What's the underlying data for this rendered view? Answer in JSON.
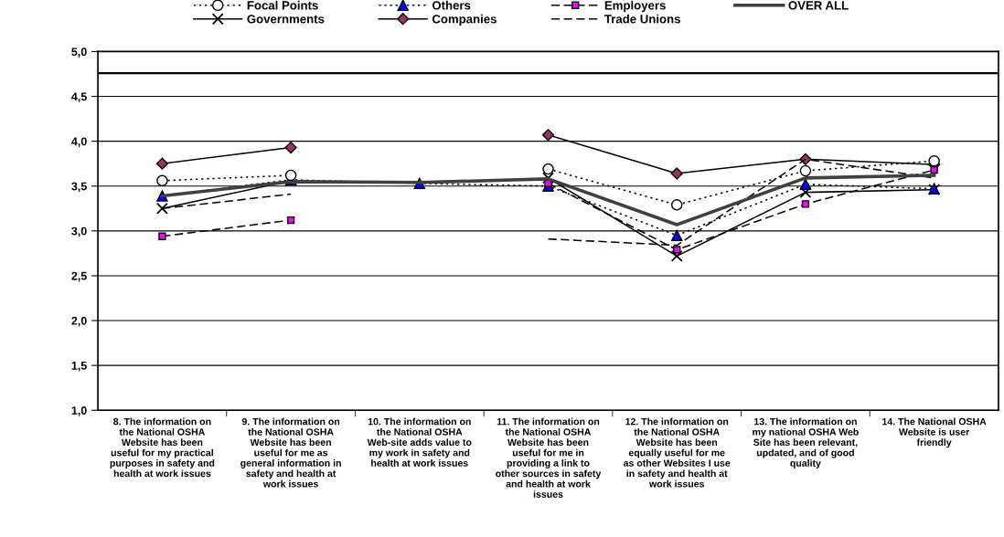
{
  "chart_data": {
    "type": "line",
    "categories": [
      "8. The information on\nthe National OSHA\nWebsite has been\nuseful for my practical\npurposes in safety and\nhealth at work issues",
      "9. The information on\nthe National OSHA\nWebsite has been\nuseful for me as\ngeneral information in\nsafety and health at\nwork issues",
      "10. The information on\nthe National OSHA\nWeb-site adds value to\nmy work in safety and\nhealth at work issues",
      "11. The information on\nthe National OSHA\nWebsite has been\nuseful for me in\nproviding a link to\nother sources in safety\nand health at work\nissues",
      "12. The information on\nthe National OSHA\nWebsite has been\nequally useful for me\nas other Websites I use\nin safety and health at\nwork issues",
      "13. The information on\nmy national OSHA Web\nSite has been relevant,\nupdated, and of good\nquality",
      "14. The National OSHA\nWebsite is user\nfriendly"
    ],
    "series": [
      {
        "name": "Focal Points",
        "color": "#ffffff",
        "marker": "circle",
        "line_style": "dotted",
        "values": [
          3.56,
          3.62,
          null,
          3.69,
          3.29,
          3.67,
          3.78
        ]
      },
      {
        "name": "Governments",
        "color": "#000000",
        "marker": "cross",
        "line_style": "solid",
        "values": [
          3.25,
          3.56,
          null,
          3.59,
          2.72,
          3.43,
          3.46
        ]
      },
      {
        "name": "Others",
        "color": "#0000ff",
        "marker": "triangle",
        "line_style": "dotted",
        "values": [
          3.39,
          3.57,
          3.53,
          3.5,
          2.95,
          3.52,
          3.47
        ]
      },
      {
        "name": "Companies",
        "color": "#993366",
        "marker": "diamond",
        "line_style": "solid",
        "values": [
          3.75,
          3.93,
          null,
          4.07,
          3.64,
          3.8,
          3.74
        ]
      },
      {
        "name": "Employers",
        "color": "#ff00ff",
        "marker": "square",
        "line_style": "dashed",
        "values": [
          2.94,
          3.12,
          null,
          3.53,
          2.79,
          3.3,
          3.68
        ]
      },
      {
        "name": "Trade Unions",
        "color": "#000000",
        "marker": "none",
        "line_style": "dashed",
        "values": [
          3.25,
          3.41,
          null,
          2.91,
          2.84,
          3.8,
          3.59
        ]
      },
      {
        "name": "OVER ALL",
        "color": "#404040",
        "marker": "none",
        "line_style": "solid",
        "values": [
          3.39,
          3.55,
          3.54,
          3.58,
          3.07,
          3.59,
          3.62
        ]
      }
    ],
    "ylim": [
      1.0,
      5.0
    ],
    "yticks": [
      {
        "value": 1.0,
        "label": "1,0"
      },
      {
        "value": 1.5,
        "label": "1,5"
      },
      {
        "value": 2.0,
        "label": "2,0"
      },
      {
        "value": 2.5,
        "label": "2,5"
      },
      {
        "value": 3.0,
        "label": "3,0"
      },
      {
        "value": 3.5,
        "label": "3,5"
      },
      {
        "value": 4.0,
        "label": "4,0"
      },
      {
        "value": 4.5,
        "label": "4,5"
      },
      {
        "value": 5.0,
        "label": "5,0"
      }
    ],
    "ref_lines": [
      {
        "axis": "y",
        "value": 4.76,
        "label": null,
        "color": "#000000"
      }
    ],
    "grid": "y",
    "legend": "top"
  }
}
